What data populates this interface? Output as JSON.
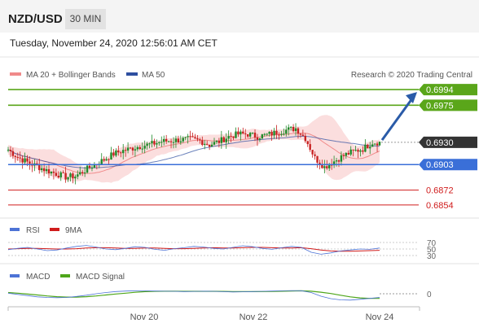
{
  "header": {
    "pair": "NZD/USD",
    "timeframe": "30 MIN"
  },
  "datetime": "Tuesday, November 24, 2020 12:56:01 AM CET",
  "credit": "Research © 2020 Trading Central",
  "colors": {
    "bollinger": "#f08a8a",
    "ma50": "#2e4fa0",
    "resistance": "#5aa61a",
    "current": "#333333",
    "pivot": "#3a6fd8",
    "support": "#d01c1c",
    "candle_up": "#1f8a2a",
    "candle_down": "#c82020",
    "rsi": "#4d73d6",
    "rsi_ma": "#d01c1c",
    "macd": "#4d73d6",
    "macd_signal": "#4ea61a",
    "arrow": "#2a5ba8"
  },
  "chart_data": [
    {
      "type": "candlestick",
      "title": "NZD/USD",
      "legend": [
        {
          "name": "MA 20 + Bollinger Bands",
          "color": "#f08a8a"
        },
        {
          "name": "MA 50",
          "color": "#2e4fa0"
        }
      ],
      "x_ticks": [
        "Nov 20",
        "Nov 22",
        "Nov 24"
      ],
      "close_series": [
        0.6921,
        0.6912,
        0.6906,
        0.6901,
        0.6896,
        0.6892,
        0.6888,
        0.6889,
        0.6896,
        0.6903,
        0.6909,
        0.6916,
        0.692,
        0.6923,
        0.6926,
        0.6928,
        0.6931,
        0.6932,
        0.6933,
        0.6934,
        0.6932,
        0.6927,
        0.6931,
        0.6937,
        0.694,
        0.694,
        0.6937,
        0.6939,
        0.6942,
        0.6945,
        0.6947,
        0.6935,
        0.6911,
        0.69,
        0.6907,
        0.6914,
        0.6919,
        0.6922,
        0.693
      ],
      "levels": [
        {
          "label": "0.6994",
          "value": 0.6994,
          "kind": "resistance"
        },
        {
          "label": "0.6975",
          "value": 0.6975,
          "kind": "resistance"
        },
        {
          "label": "0.6930",
          "value": 0.693,
          "kind": "current"
        },
        {
          "label": "0.6903",
          "value": 0.6903,
          "kind": "pivot"
        },
        {
          "label": "0.6872",
          "value": 0.6872,
          "kind": "support"
        },
        {
          "label": "0.6854",
          "value": 0.6854,
          "kind": "support"
        }
      ],
      "ylim": [
        0.6844,
        0.7
      ]
    },
    {
      "type": "line",
      "legend": [
        {
          "name": "RSI",
          "color": "#4d73d6"
        },
        {
          "name": "9MA",
          "color": "#d01c1c"
        }
      ],
      "y_ticks": [
        "70",
        "50",
        "30"
      ],
      "ylim": [
        20,
        80
      ],
      "series": [
        {
          "name": "RSI",
          "values": [
            48,
            52,
            55,
            50,
            45,
            47,
            53,
            58,
            61,
            56,
            50,
            48,
            52,
            57,
            55,
            49,
            46,
            51,
            54,
            58,
            56,
            52,
            50,
            55,
            60,
            57,
            52,
            49,
            54,
            58,
            55,
            40,
            34,
            38,
            44,
            47,
            50,
            49,
            53
          ]
        },
        {
          "name": "9MA",
          "values": [
            50,
            51,
            52,
            52,
            51,
            50,
            50,
            51,
            53,
            54,
            54,
            53,
            52,
            52,
            53,
            53,
            52,
            51,
            51,
            52,
            53,
            54,
            53,
            53,
            54,
            55,
            55,
            54,
            53,
            53,
            54,
            51,
            47,
            44,
            43,
            43,
            44,
            45,
            46
          ]
        }
      ]
    },
    {
      "type": "line",
      "legend": [
        {
          "name": "MACD",
          "color": "#4d73d6"
        },
        {
          "name": "MACD Signal",
          "color": "#4ea61a"
        }
      ],
      "y_ticks": [
        "0"
      ],
      "ylim": [
        -1,
        1
      ],
      "series": [
        {
          "name": "MACD",
          "values": [
            0.05,
            -0.05,
            -0.15,
            -0.25,
            -0.3,
            -0.32,
            -0.3,
            -0.22,
            -0.12,
            0.0,
            0.1,
            0.18,
            0.22,
            0.25,
            0.24,
            0.22,
            0.21,
            0.2,
            0.18,
            0.19,
            0.21,
            0.2,
            0.17,
            0.15,
            0.16,
            0.18,
            0.2,
            0.22,
            0.24,
            0.26,
            0.25,
            0.1,
            -0.2,
            -0.4,
            -0.5,
            -0.52,
            -0.45,
            -0.38,
            -0.3
          ]
        },
        {
          "name": "MACD Signal",
          "values": [
            0.1,
            0.05,
            -0.03,
            -0.1,
            -0.18,
            -0.24,
            -0.27,
            -0.27,
            -0.24,
            -0.18,
            -0.1,
            -0.02,
            0.05,
            0.12,
            0.17,
            0.2,
            0.21,
            0.21,
            0.2,
            0.2,
            0.2,
            0.2,
            0.19,
            0.18,
            0.17,
            0.17,
            0.18,
            0.19,
            0.21,
            0.23,
            0.24,
            0.21,
            0.13,
            0.02,
            -0.12,
            -0.25,
            -0.34,
            -0.38,
            -0.38
          ]
        }
      ]
    }
  ]
}
